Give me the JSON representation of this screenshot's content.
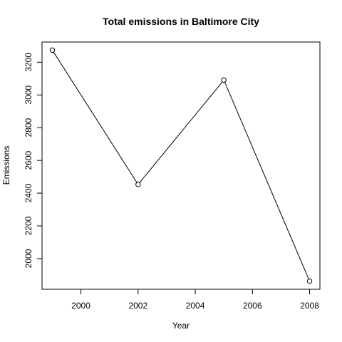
{
  "chart_data": {
    "type": "line",
    "title": "Total emissions in Baltimore City",
    "xlabel": "Year",
    "ylabel": "Emissions",
    "x": [
      1999,
      2002,
      2005,
      2008
    ],
    "y": [
      3274,
      2453,
      3091,
      1862
    ],
    "xlim": [
      1998.64,
      2008.36
    ],
    "ylim": [
      1812.7,
      3323.3
    ],
    "xticks": [
      2000,
      2002,
      2004,
      2006,
      2008
    ],
    "yticks": [
      2000,
      2200,
      2400,
      2600,
      2800,
      3000,
      3200
    ],
    "marker": "open-circle",
    "line_color": "#000000",
    "grid": false,
    "legend": "none"
  }
}
